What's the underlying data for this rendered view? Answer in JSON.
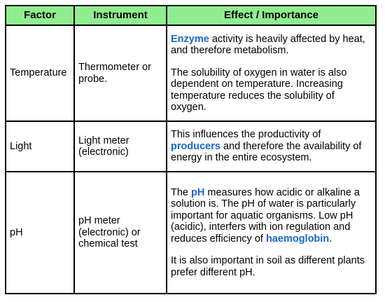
{
  "table": {
    "headers": [
      "Factor",
      "Instrument",
      "Effect / Importance"
    ],
    "rows": [
      {
        "factor": "Temperature",
        "instrument": "Thermometer or probe.",
        "effect": {
          "p1_kw": "Enzyme",
          "p1_rest": " activity is heavily affected by heat, and therefore metabolism.",
          "p2": "The solubility of oxygen in water is also dependent on temperature. Increasing temperature reduces the solubility of oxygen."
        }
      },
      {
        "factor": "Light",
        "instrument": "Light meter (electronic)",
        "effect": {
          "p1_a": "This influences the productivity of ",
          "p1_kw": "producers",
          "p1_b": " and therefore the availability of energy in the entire ecosystem."
        }
      },
      {
        "factor": "pH",
        "instrument": "pH meter (electronic) or chemical test",
        "effect": {
          "p1_a": "The ",
          "p1_kw1": "pH",
          "p1_b": " measures how acidic or alkaline a solution is. The pH of water is particularly important for aquatic organisms. Low pH (acidic), interfers with ion regulation and reduces efficiency of ",
          "p1_kw2": "haemoglobin",
          "p1_c": ".",
          "p2": "It is also important in soil as different plants prefer different pH."
        }
      }
    ]
  },
  "colors": {
    "header_bg": "#90ee90",
    "keyword": "#1a66d0",
    "border": "#000000"
  }
}
